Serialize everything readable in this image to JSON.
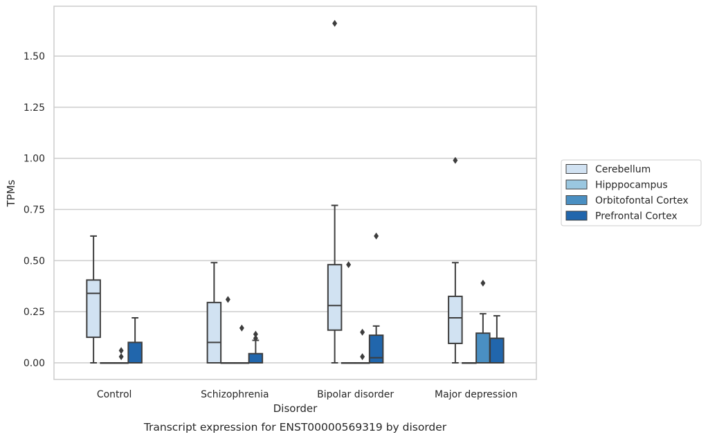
{
  "chart_data": {
    "type": "boxplot",
    "caption": "Transcript expression for ENST00000569319 by disorder",
    "xlabel": "Disorder",
    "ylabel": "TPMs",
    "ylim": [
      -0.08,
      1.75
    ],
    "yticks": [
      0.0,
      0.25,
      0.5,
      0.75,
      1.0,
      1.25,
      1.5
    ],
    "ytick_labels": [
      "0.00",
      "0.25",
      "0.50",
      "0.75",
      "1.00",
      "1.25",
      "1.50"
    ],
    "grid": "horizontal",
    "legend_position": "right",
    "categories": [
      "Control",
      "Schizophrenia",
      "Bipolar disorder",
      "Major depression"
    ],
    "series": [
      {
        "name": "Cerebellum",
        "color": "#d1e2f2",
        "boxes": [
          {
            "min": 0.0,
            "q1": 0.125,
            "median": 0.34,
            "q3": 0.405,
            "max": 0.62,
            "outliers": []
          },
          {
            "min": 0.0,
            "q1": 0.0,
            "median": 0.1,
            "q3": 0.295,
            "max": 0.49,
            "outliers": []
          },
          {
            "min": 0.0,
            "q1": 0.16,
            "median": 0.28,
            "q3": 0.48,
            "max": 0.77,
            "outliers": [
              1.66
            ]
          },
          {
            "min": 0.0,
            "q1": 0.095,
            "median": 0.22,
            "q3": 0.325,
            "max": 0.49,
            "outliers": [
              0.99
            ]
          }
        ]
      },
      {
        "name": "Hipppocampus",
        "color": "#9ac7e0",
        "boxes": [
          {
            "min": 0.0,
            "q1": 0.0,
            "median": 0.0,
            "q3": 0.0,
            "max": 0.0,
            "outliers": []
          },
          {
            "min": 0.0,
            "q1": 0.0,
            "median": 0.0,
            "q3": 0.0,
            "max": 0.0,
            "outliers": [
              0.31
            ]
          },
          {
            "min": 0.0,
            "q1": 0.0,
            "median": 0.0,
            "q3": 0.0,
            "max": 0.0,
            "outliers": [
              0.48
            ]
          },
          {
            "min": 0.0,
            "q1": 0.0,
            "median": 0.0,
            "q3": 0.0,
            "max": 0.0,
            "outliers": []
          }
        ]
      },
      {
        "name": "Orbitofontal Cortex",
        "color": "#4a8fc2",
        "boxes": [
          {
            "min": 0.0,
            "q1": 0.0,
            "median": 0.0,
            "q3": 0.0,
            "max": 0.0,
            "outliers": [
              0.03,
              0.06
            ]
          },
          {
            "min": 0.0,
            "q1": 0.0,
            "median": 0.0,
            "q3": 0.0,
            "max": 0.0,
            "outliers": [
              0.17
            ]
          },
          {
            "min": 0.0,
            "q1": 0.0,
            "median": 0.0,
            "q3": 0.0,
            "max": 0.0,
            "outliers": [
              0.03,
              0.15
            ]
          },
          {
            "min": 0.0,
            "q1": 0.0,
            "median": 0.0,
            "q3": 0.145,
            "max": 0.24,
            "outliers": [
              0.39
            ]
          }
        ]
      },
      {
        "name": "Prefrontal Cortex",
        "color": "#2166ac",
        "boxes": [
          {
            "min": 0.0,
            "q1": 0.0,
            "median": 0.0,
            "q3": 0.1,
            "max": 0.22,
            "outliers": []
          },
          {
            "min": 0.0,
            "q1": 0.0,
            "median": 0.0,
            "q3": 0.045,
            "max": 0.11,
            "outliers": [
              0.12,
              0.14
            ]
          },
          {
            "min": 0.0,
            "q1": 0.0,
            "median": 0.025,
            "q3": 0.135,
            "max": 0.18,
            "outliers": [
              0.62
            ]
          },
          {
            "min": 0.0,
            "q1": 0.0,
            "median": 0.0,
            "q3": 0.12,
            "max": 0.23,
            "outliers": []
          }
        ]
      }
    ]
  }
}
